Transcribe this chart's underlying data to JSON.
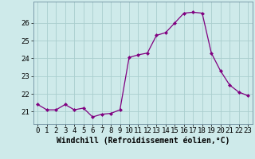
{
  "x": [
    0,
    1,
    2,
    3,
    4,
    5,
    6,
    7,
    8,
    9,
    10,
    11,
    12,
    13,
    14,
    15,
    16,
    17,
    18,
    19,
    20,
    21,
    22,
    23
  ],
  "y": [
    21.4,
    21.1,
    21.1,
    21.4,
    21.1,
    21.2,
    20.7,
    20.85,
    20.9,
    21.1,
    24.05,
    24.2,
    24.3,
    25.3,
    25.45,
    26.0,
    26.55,
    26.6,
    26.55,
    24.3,
    23.3,
    22.5,
    22.1,
    21.9
  ],
  "line_color": "#800080",
  "marker": "D",
  "markersize": 2,
  "linewidth": 0.9,
  "bg_color": "#ceeaea",
  "grid_color": "#aacece",
  "xlabel": "Windchill (Refroidissement éolien,°C)",
  "xlabel_fontsize": 7,
  "tick_fontsize": 6.5,
  "xlim": [
    -0.5,
    23.5
  ],
  "ylim": [
    20.3,
    27.2
  ],
  "yticks": [
    21,
    22,
    23,
    24,
    25,
    26
  ],
  "xtick_labels": [
    "0",
    "1",
    "2",
    "3",
    "4",
    "5",
    "6",
    "7",
    "8",
    "9",
    "10",
    "11",
    "12",
    "13",
    "14",
    "15",
    "16",
    "17",
    "18",
    "19",
    "20",
    "21",
    "22",
    "23"
  ]
}
